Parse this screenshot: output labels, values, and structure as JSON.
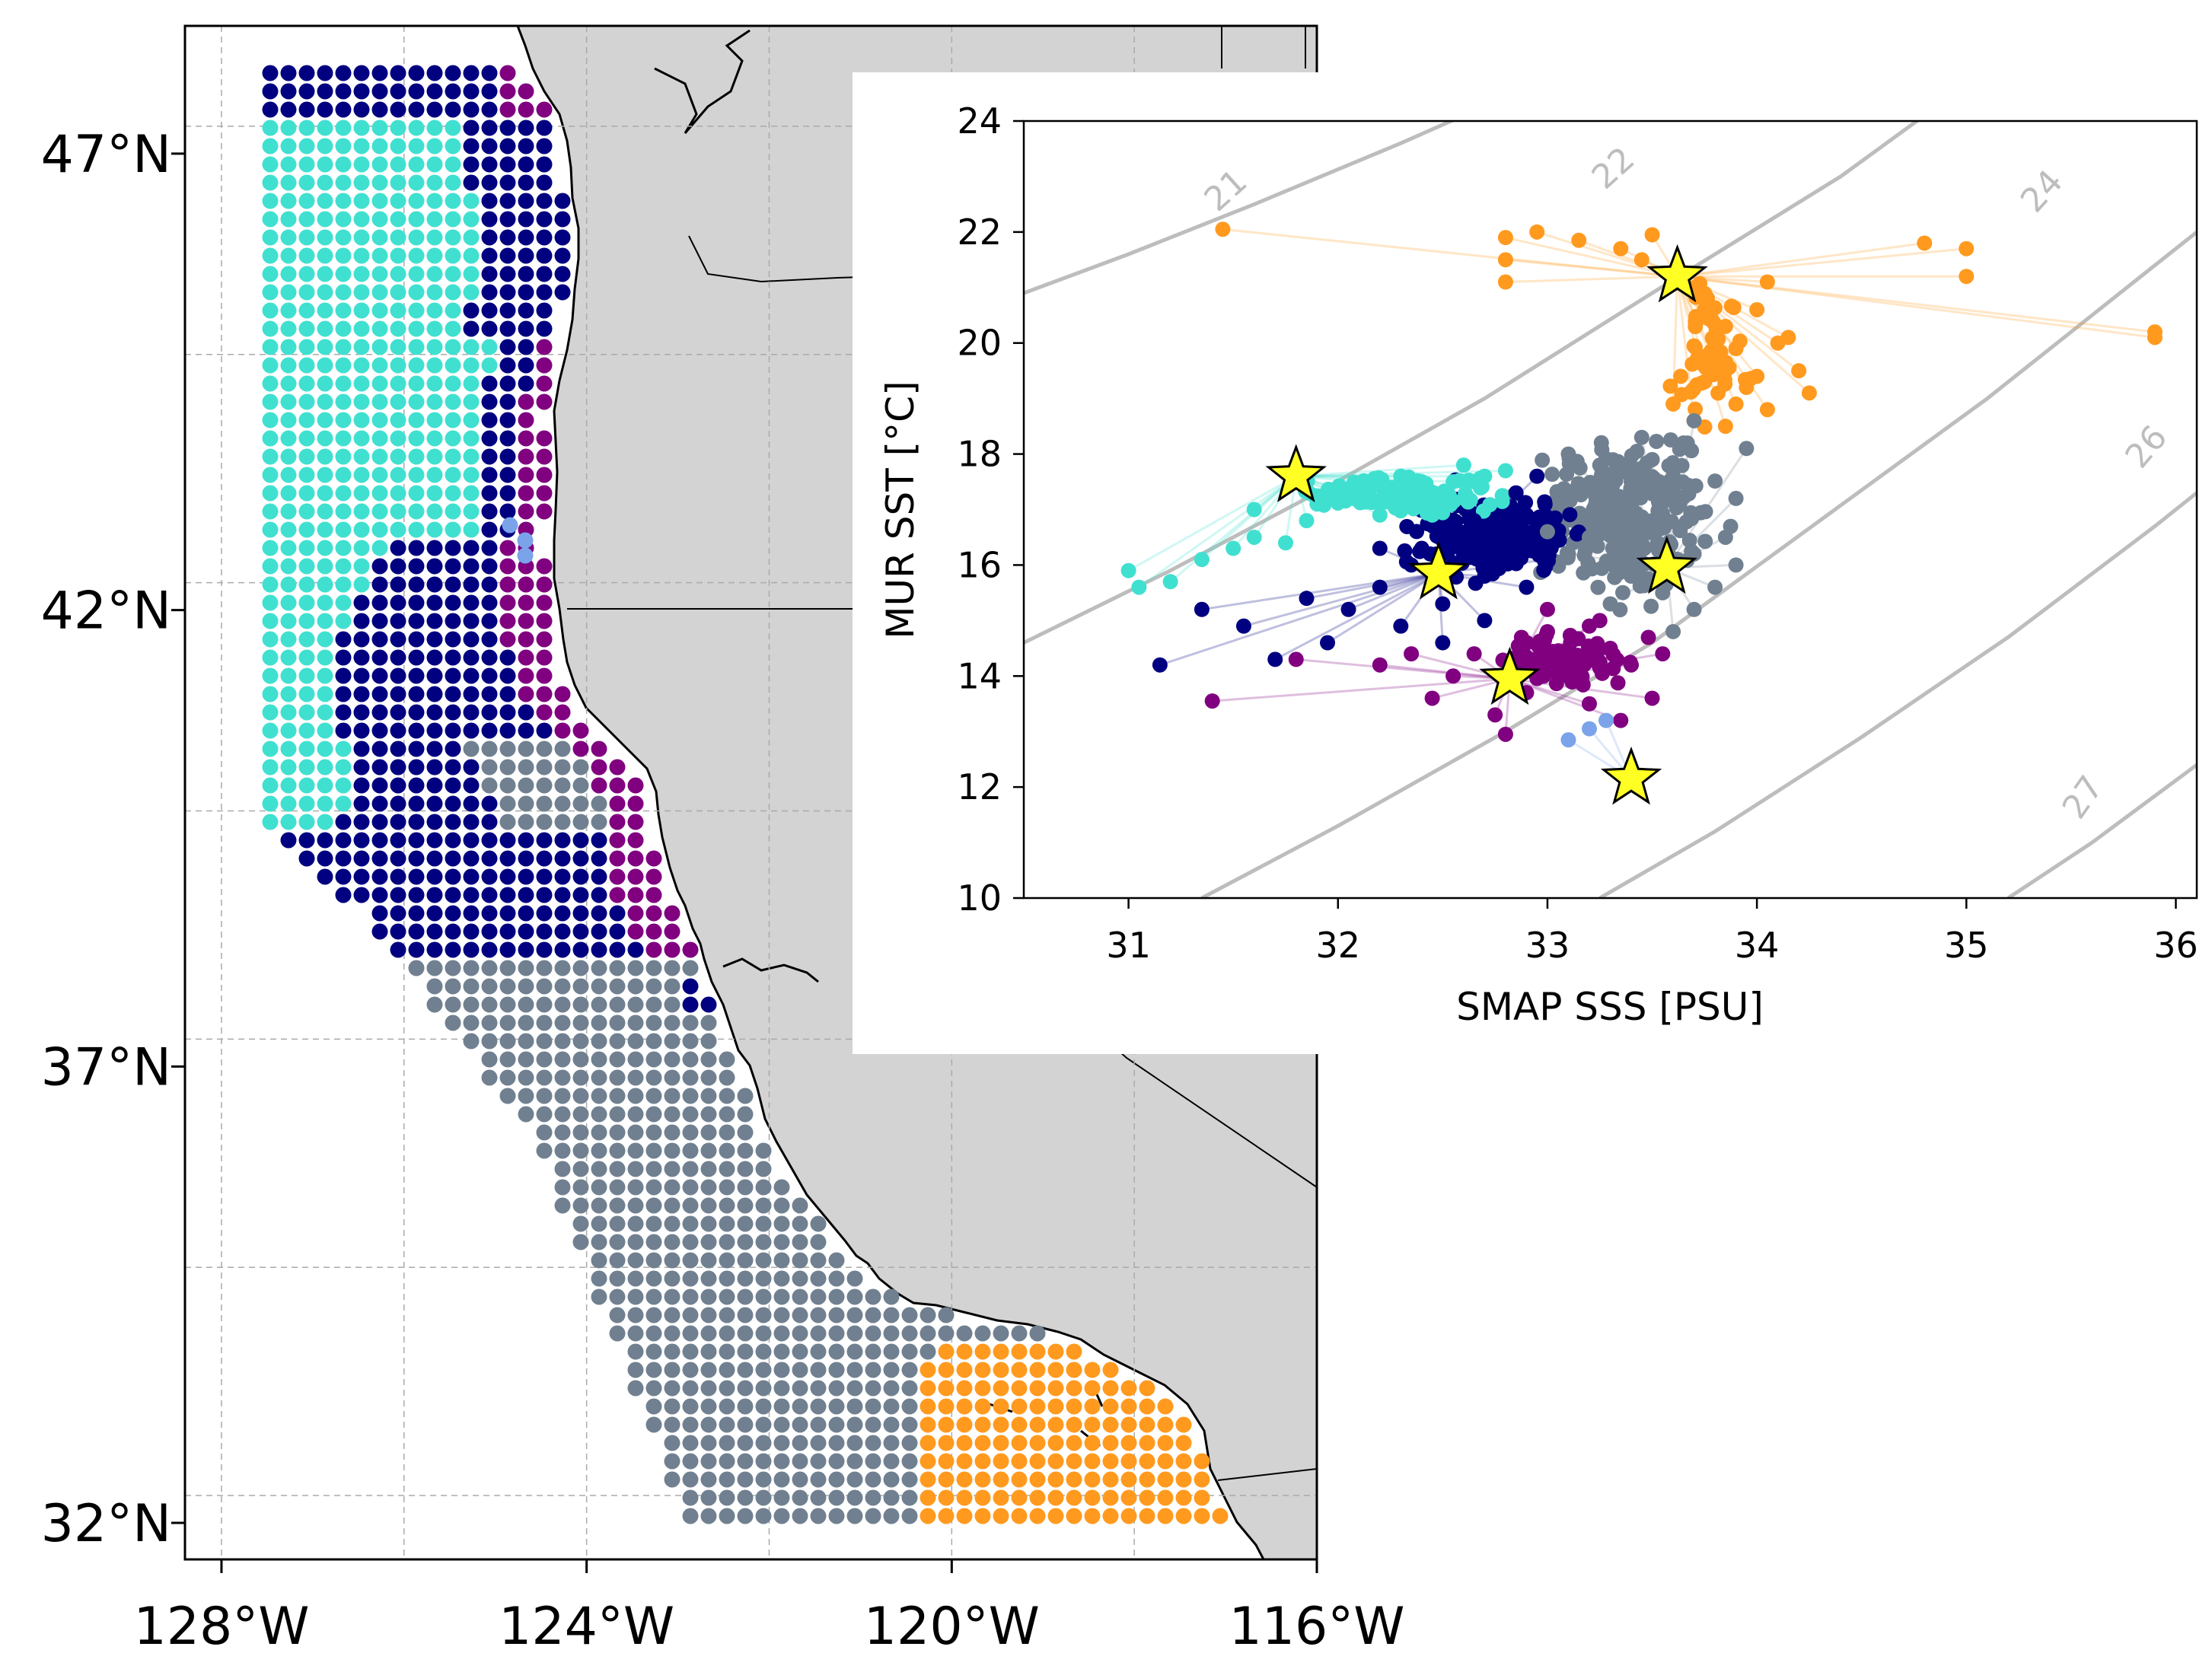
{
  "chart_data": [
    {
      "type": "scatter",
      "subtype": "map",
      "x_ticks": [
        "128°W",
        "124°W",
        "120°W",
        "116°W"
      ],
      "y_ticks": [
        "32°N",
        "37°N",
        "42°N",
        "47°N"
      ],
      "x_tick_values": [
        -128,
        -124,
        -120,
        -116
      ],
      "y_tick_values": [
        32,
        37,
        42,
        47
      ],
      "xlim": [
        -128.4,
        -116
      ],
      "ylim": [
        31.6,
        48.4
      ],
      "grid": true,
      "grid_style": "dashed",
      "land_color": "#d3d3d3",
      "ocean_color": "#ffffff",
      "cluster_colors": {
        "turquoise": "#40e0d0",
        "navy": "#000080",
        "purple": "#800080",
        "slategray": "#708090",
        "orange": "#ff9a1f",
        "cornflower": "#7ba3ea"
      },
      "clusters_by_latitude_note_free": [
        {
          "color": "navy",
          "lat": [
            47.4,
            48.0
          ],
          "lon": [
            -127.5,
            -124.9
          ]
        },
        {
          "color": "turquoise",
          "lat": [
            43.8,
            47.3
          ],
          "lon": [
            -127.5,
            -124.3
          ]
        },
        {
          "color": "navy",
          "lat": [
            39.2,
            44.0
          ],
          "lon": [
            -127.5,
            -124.4
          ]
        },
        {
          "color": "purple",
          "lat": [
            38.4,
            44.0
          ],
          "lon": [
            -125.3,
            -123.6
          ]
        },
        {
          "color": "slategray",
          "lat": [
            32.0,
            38.8
          ],
          "lon": [
            -126.0,
            -117.8
          ]
        },
        {
          "color": "orange",
          "lat": [
            32.0,
            33.8
          ],
          "lon": [
            -120.3,
            -117.3
          ]
        }
      ]
    },
    {
      "type": "scatter",
      "xlabel": "SMAP SSS [PSU]",
      "ylabel": "MUR SST [°C]",
      "xlim": [
        30.5,
        36.1
      ],
      "ylim": [
        10,
        24
      ],
      "x_ticks": [
        31,
        32,
        33,
        34,
        35,
        36
      ],
      "y_ticks": [
        10,
        12,
        14,
        16,
        18,
        20,
        22,
        24
      ],
      "grid": false,
      "contour_labels": [
        "21",
        "22",
        "24",
        "26",
        "27"
      ],
      "centroids": [
        {
          "color": "turquoise",
          "x": 31.8,
          "y": 17.6
        },
        {
          "color": "navy",
          "x": 32.48,
          "y": 15.85
        },
        {
          "color": "purple",
          "x": 32.82,
          "y": 13.95
        },
        {
          "color": "slategray",
          "x": 33.57,
          "y": 15.95
        },
        {
          "color": "orange",
          "x": 33.62,
          "y": 21.2
        },
        {
          "color": "cornflower",
          "x": 33.4,
          "y": 12.15
        }
      ],
      "series": [
        {
          "color": "orange",
          "points": [
            [
              31.45,
              22.05
            ],
            [
              32.8,
              21.9
            ],
            [
              32.95,
              22.0
            ],
            [
              33.15,
              21.85
            ],
            [
              33.35,
              21.7
            ],
            [
              33.5,
              21.95
            ],
            [
              33.45,
              21.5
            ],
            [
              32.8,
              21.5
            ],
            [
              32.8,
              21.1
            ],
            [
              33.7,
              21.0
            ],
            [
              33.75,
              20.6
            ],
            [
              33.85,
              20.3
            ],
            [
              34.0,
              20.6
            ],
            [
              34.1,
              20.0
            ],
            [
              33.9,
              19.9
            ],
            [
              33.8,
              19.6
            ],
            [
              33.95,
              19.2
            ],
            [
              34.2,
              19.5
            ],
            [
              34.05,
              18.8
            ],
            [
              33.9,
              18.9
            ],
            [
              33.75,
              19.3
            ],
            [
              33.6,
              18.9
            ],
            [
              33.7,
              18.6
            ],
            [
              33.85,
              18.5
            ],
            [
              34.0,
              19.4
            ],
            [
              34.05,
              21.1
            ],
            [
              34.15,
              20.1
            ],
            [
              34.8,
              21.8
            ],
            [
              35.0,
              21.7
            ],
            [
              35.0,
              21.2
            ],
            [
              35.9,
              20.2
            ],
            [
              35.9,
              20.1
            ],
            [
              34.25,
              19.1
            ]
          ]
        },
        {
          "color": "turquoise",
          "points": [
            [
              31.0,
              15.9
            ],
            [
              31.05,
              15.6
            ],
            [
              31.2,
              15.7
            ],
            [
              31.35,
              16.1
            ],
            [
              31.5,
              16.3
            ],
            [
              31.6,
              16.5
            ],
            [
              31.75,
              16.4
            ],
            [
              31.85,
              16.8
            ],
            [
              32.0,
              17.3
            ],
            [
              32.15,
              17.2
            ],
            [
              32.3,
              17.6
            ],
            [
              32.4,
              17.4
            ],
            [
              32.55,
              17.5
            ],
            [
              32.7,
              17.6
            ],
            [
              32.2,
              16.9
            ],
            [
              32.45,
              16.9
            ],
            [
              31.6,
              17.0
            ],
            [
              31.9,
              17.1
            ],
            [
              32.6,
              17.8
            ],
            [
              32.8,
              17.7
            ]
          ]
        },
        {
          "color": "navy",
          "points": [
            [
              31.15,
              14.2
            ],
            [
              31.35,
              15.2
            ],
            [
              31.55,
              14.9
            ],
            [
              31.7,
              14.3
            ],
            [
              31.85,
              15.4
            ],
            [
              31.95,
              14.6
            ],
            [
              32.05,
              15.2
            ],
            [
              32.2,
              15.6
            ],
            [
              32.3,
              14.9
            ],
            [
              32.35,
              16.0
            ],
            [
              32.5,
              15.3
            ],
            [
              32.6,
              16.2
            ],
            [
              32.7,
              15.8
            ],
            [
              32.8,
              16.5
            ],
            [
              32.9,
              16.9
            ],
            [
              33.0,
              16.1
            ],
            [
              32.65,
              16.8
            ],
            [
              32.5,
              16.6
            ],
            [
              32.85,
              17.3
            ],
            [
              32.95,
              17.6
            ],
            [
              32.4,
              16.3
            ],
            [
              32.2,
              16.3
            ],
            [
              32.7,
              15.0
            ],
            [
              32.5,
              14.6
            ],
            [
              32.9,
              15.6
            ]
          ]
        },
        {
          "color": "purple",
          "points": [
            [
              31.4,
              13.55
            ],
            [
              31.8,
              14.3
            ],
            [
              32.2,
              14.2
            ],
            [
              32.45,
              13.6
            ],
            [
              32.55,
              14.0
            ],
            [
              32.65,
              14.4
            ],
            [
              32.75,
              13.3
            ],
            [
              32.8,
              12.95
            ],
            [
              32.95,
              14.3
            ],
            [
              33.0,
              14.8
            ],
            [
              33.1,
              14.0
            ],
            [
              33.2,
              13.5
            ],
            [
              33.3,
              14.5
            ],
            [
              33.4,
              14.2
            ],
            [
              33.5,
              13.6
            ],
            [
              33.55,
              14.4
            ],
            [
              33.0,
              15.2
            ],
            [
              33.25,
              15.0
            ],
            [
              32.9,
              13.7
            ],
            [
              33.35,
              13.2
            ],
            [
              33.2,
              14.9
            ],
            [
              32.35,
              14.4
            ]
          ]
        },
        {
          "color": "slategray",
          "points": [
            [
              33.1,
              18.0
            ],
            [
              33.25,
              17.8
            ],
            [
              33.4,
              17.5
            ],
            [
              33.5,
              17.9
            ],
            [
              33.65,
              18.2
            ],
            [
              33.7,
              18.6
            ],
            [
              33.6,
              17.6
            ],
            [
              33.35,
              17.0
            ],
            [
              33.2,
              16.5
            ],
            [
              33.1,
              16.2
            ],
            [
              33.5,
              16.8
            ],
            [
              33.7,
              16.2
            ],
            [
              33.85,
              16.5
            ],
            [
              33.9,
              16.0
            ],
            [
              33.8,
              15.6
            ],
            [
              33.7,
              15.2
            ],
            [
              33.6,
              14.8
            ],
            [
              33.55,
              15.5
            ],
            [
              33.4,
              15.8
            ],
            [
              33.3,
              15.3
            ],
            [
              33.0,
              16.6
            ],
            [
              33.9,
              17.2
            ],
            [
              33.95,
              18.1
            ],
            [
              33.45,
              18.3
            ]
          ]
        },
        {
          "color": "cornflower",
          "points": [
            [
              33.1,
              12.85
            ],
            [
              33.2,
              13.05
            ],
            [
              33.28,
              13.2
            ]
          ]
        }
      ]
    }
  ]
}
